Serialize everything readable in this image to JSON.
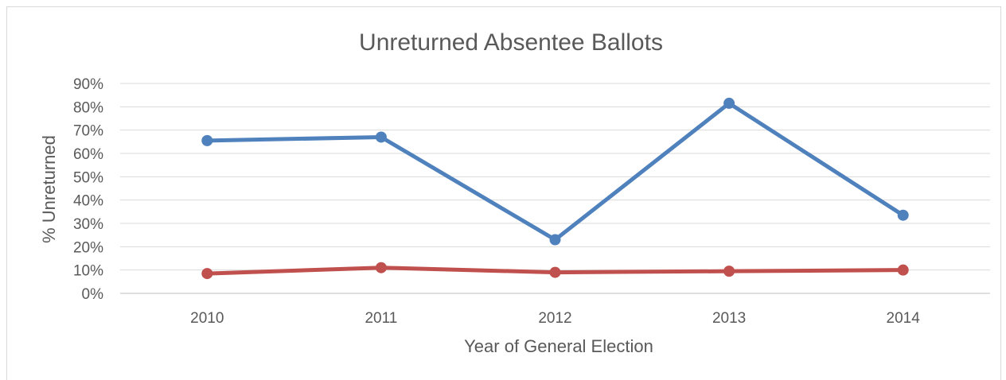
{
  "chart_data": {
    "type": "line",
    "title": "Unreturned Absentee Ballots",
    "xlabel": "Year of General Election",
    "ylabel": "% Unreturned",
    "categories": [
      "2010",
      "2011",
      "2012",
      "2013",
      "2014"
    ],
    "ylim": [
      0,
      90
    ],
    "yticks": [
      0,
      10,
      20,
      30,
      40,
      50,
      60,
      70,
      80,
      90
    ],
    "ytick_labels": [
      "0%",
      "10%",
      "20%",
      "30%",
      "40%",
      "50%",
      "60%",
      "70%",
      "80%",
      "90%"
    ],
    "grid": true,
    "legend": "none",
    "series": [
      {
        "color": "#4f81bd",
        "values": [
          65.5,
          67,
          23,
          81.5,
          33.5
        ]
      },
      {
        "color": "#c0504d",
        "values": [
          8.5,
          11,
          9,
          9.5,
          10
        ]
      }
    ]
  }
}
